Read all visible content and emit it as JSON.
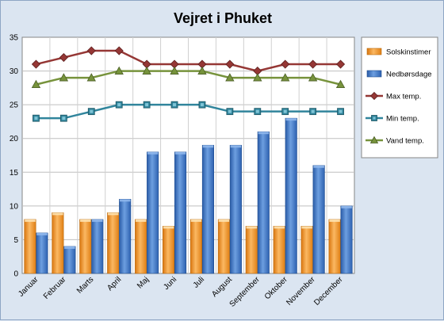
{
  "chart_data": {
    "type": "bar",
    "title": "Vejret i Phuket",
    "xlabel": "",
    "ylabel": "",
    "ylim": [
      0,
      35
    ],
    "yticks": [
      0,
      5,
      10,
      15,
      20,
      25,
      30,
      35
    ],
    "grid": true,
    "legend_position": "right",
    "categories": [
      "Januar",
      "Februar",
      "Marts",
      "April",
      "Maj",
      "Juni",
      "Juli",
      "August",
      "September",
      "Oktober",
      "November",
      "December"
    ],
    "series": [
      {
        "name": "Solskinstimer",
        "type": "bar",
        "color": "#f7941d",
        "values": [
          8,
          9,
          8,
          9,
          8,
          7,
          8,
          8,
          7,
          7,
          7,
          8
        ]
      },
      {
        "name": "Nedbørsdage",
        "type": "bar",
        "color": "#3a74c4",
        "values": [
          6,
          4,
          8,
          11,
          18,
          18,
          19,
          19,
          21,
          23,
          16,
          10
        ]
      },
      {
        "name": "Max temp.",
        "type": "line",
        "marker": "diamond",
        "color": "#953735",
        "values": [
          31,
          32,
          33,
          33,
          31,
          31,
          31,
          31,
          30,
          31,
          31,
          31
        ]
      },
      {
        "name": "Min temp.",
        "type": "line",
        "marker": "square",
        "color": "#31859c",
        "values": [
          23,
          23,
          24,
          25,
          25,
          25,
          25,
          24,
          24,
          24,
          24,
          24
        ]
      },
      {
        "name": "Vand temp.",
        "type": "line",
        "marker": "triangle",
        "color": "#77933c",
        "values": [
          28,
          29,
          29,
          30,
          30,
          30,
          30,
          29,
          29,
          29,
          29,
          28
        ]
      }
    ]
  }
}
